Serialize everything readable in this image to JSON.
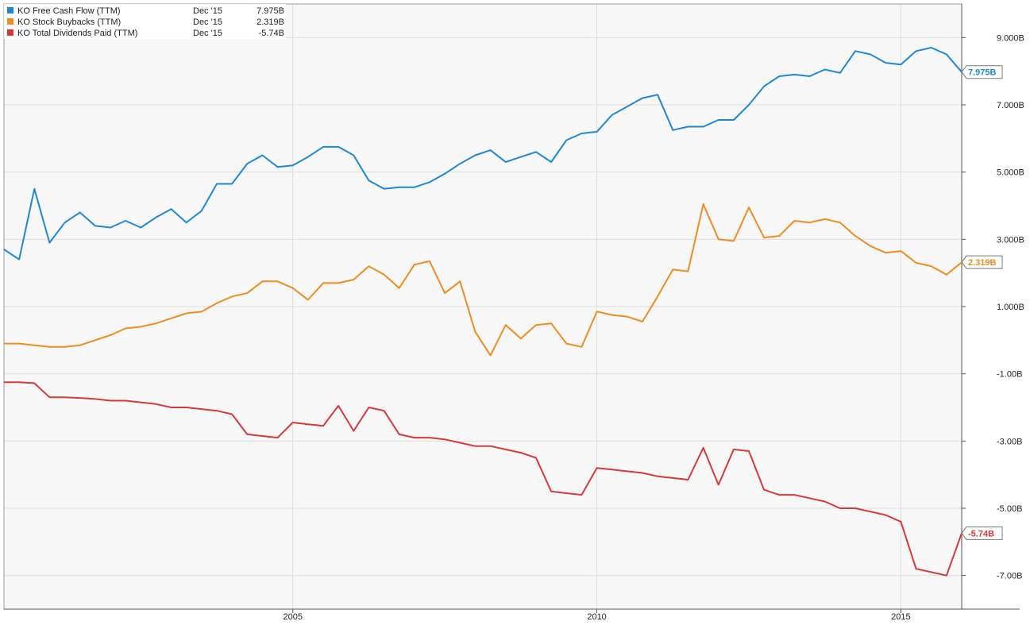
{
  "chart_data": {
    "type": "line",
    "xlim": [
      2000.25,
      2016.0
    ],
    "ylim": [
      -8.0,
      10.0
    ],
    "x_ticks": [
      {
        "value": 2005,
        "label": "2005"
      },
      {
        "value": 2010,
        "label": "2010"
      },
      {
        "value": 2015,
        "label": "2015"
      }
    ],
    "y_ticks": [
      {
        "value": 9,
        "label": "9.000B"
      },
      {
        "value": 7,
        "label": "7.000B"
      },
      {
        "value": 5,
        "label": "5.000B"
      },
      {
        "value": 3,
        "label": "3.000B"
      },
      {
        "value": 1,
        "label": "1.000B"
      },
      {
        "value": -1,
        "label": "-1.00B"
      },
      {
        "value": -3,
        "label": "-3.00B"
      },
      {
        "value": -5,
        "label": "-5.00B"
      },
      {
        "value": -7,
        "label": "-7.00B"
      }
    ],
    "grid": true,
    "legend_position": "top-left",
    "series": [
      {
        "name": "KO Free Cash Flow (TTM)",
        "color": "#1e88d6",
        "legend_date": "Dec '15",
        "legend_value": "7.975B",
        "end_label": "7.975B",
        "x": [
          2000.25,
          2000.5,
          2000.75,
          2001.0,
          2001.25,
          2001.5,
          2001.75,
          2002.0,
          2002.25,
          2002.5,
          2002.75,
          2003.0,
          2003.25,
          2003.5,
          2003.75,
          2004.0,
          2004.25,
          2004.5,
          2004.75,
          2005.0,
          2005.25,
          2005.5,
          2005.75,
          2006.0,
          2006.25,
          2006.5,
          2006.75,
          2007.0,
          2007.25,
          2007.5,
          2007.75,
          2008.0,
          2008.25,
          2008.5,
          2008.75,
          2009.0,
          2009.25,
          2009.5,
          2009.75,
          2010.0,
          2010.25,
          2010.5,
          2010.75,
          2011.0,
          2011.25,
          2011.5,
          2011.75,
          2012.0,
          2012.25,
          2012.5,
          2012.75,
          2013.0,
          2013.25,
          2013.5,
          2013.75,
          2014.0,
          2014.25,
          2014.5,
          2014.75,
          2015.0,
          2015.25,
          2015.5,
          2015.75,
          2016.0
        ],
        "values": [
          2.7,
          2.4,
          4.5,
          2.9,
          3.5,
          3.8,
          3.4,
          3.35,
          3.55,
          3.35,
          3.65,
          3.9,
          3.5,
          3.85,
          4.65,
          4.65,
          5.25,
          5.5,
          5.15,
          5.2,
          5.45,
          5.75,
          5.75,
          5.5,
          4.75,
          4.5,
          4.55,
          4.55,
          4.7,
          4.95,
          5.25,
          5.5,
          5.65,
          5.3,
          5.45,
          5.6,
          5.3,
          5.95,
          6.15,
          6.2,
          6.7,
          6.95,
          7.2,
          7.3,
          6.25,
          6.35,
          6.35,
          6.55,
          6.55,
          7.0,
          7.55,
          7.85,
          7.9,
          7.85,
          8.05,
          7.95,
          8.6,
          8.5,
          8.25,
          8.2,
          8.6,
          8.7,
          8.5,
          7.975
        ]
      },
      {
        "name": "KO Stock Buybacks (TTM)",
        "color": "#f08c1e",
        "legend_date": "Dec '15",
        "legend_value": "2.319B",
        "end_label": "2.319B",
        "x": [
          2000.25,
          2000.5,
          2000.75,
          2001.0,
          2001.25,
          2001.5,
          2001.75,
          2002.0,
          2002.25,
          2002.5,
          2002.75,
          2003.0,
          2003.25,
          2003.5,
          2003.75,
          2004.0,
          2004.25,
          2004.5,
          2004.75,
          2005.0,
          2005.25,
          2005.5,
          2005.75,
          2006.0,
          2006.25,
          2006.5,
          2006.75,
          2007.0,
          2007.25,
          2007.5,
          2007.75,
          2008.0,
          2008.25,
          2008.5,
          2008.75,
          2009.0,
          2009.25,
          2009.5,
          2009.75,
          2010.0,
          2010.25,
          2010.5,
          2010.75,
          2011.0,
          2011.25,
          2011.5,
          2011.75,
          2012.0,
          2012.25,
          2012.5,
          2012.75,
          2013.0,
          2013.25,
          2013.5,
          2013.75,
          2014.0,
          2014.25,
          2014.5,
          2014.75,
          2015.0,
          2015.25,
          2015.5,
          2015.75,
          2016.0
        ],
        "values": [
          -0.1,
          -0.1,
          -0.15,
          -0.2,
          -0.2,
          -0.15,
          0.0,
          0.15,
          0.35,
          0.4,
          0.5,
          0.65,
          0.8,
          0.85,
          1.1,
          1.3,
          1.4,
          1.75,
          1.75,
          1.55,
          1.2,
          1.7,
          1.7,
          1.8,
          2.2,
          1.95,
          1.55,
          2.25,
          2.35,
          1.4,
          1.75,
          0.25,
          -0.45,
          0.45,
          0.05,
          0.45,
          0.5,
          -0.1,
          -0.2,
          0.85,
          0.75,
          0.7,
          0.55,
          1.3,
          2.1,
          2.05,
          4.05,
          3.0,
          2.95,
          3.95,
          3.05,
          3.1,
          3.55,
          3.5,
          3.6,
          3.5,
          3.1,
          2.8,
          2.6,
          2.65,
          2.3,
          2.2,
          1.95,
          2.319
        ]
      },
      {
        "name": "KO Total Dividends Paid (TTM)",
        "color": "#d9383a",
        "legend_date": "Dec '15",
        "legend_value": "-5.74B",
        "end_label": "-5.74B",
        "x": [
          2000.25,
          2000.5,
          2000.75,
          2001.0,
          2001.25,
          2001.5,
          2001.75,
          2002.0,
          2002.25,
          2002.5,
          2002.75,
          2003.0,
          2003.25,
          2003.5,
          2003.75,
          2004.0,
          2004.25,
          2004.5,
          2004.75,
          2005.0,
          2005.25,
          2005.5,
          2005.75,
          2006.0,
          2006.25,
          2006.5,
          2006.75,
          2007.0,
          2007.25,
          2007.5,
          2007.75,
          2008.0,
          2008.25,
          2008.5,
          2008.75,
          2009.0,
          2009.25,
          2009.5,
          2009.75,
          2010.0,
          2010.25,
          2010.5,
          2010.75,
          2011.0,
          2011.25,
          2011.5,
          2011.75,
          2012.0,
          2012.25,
          2012.5,
          2012.75,
          2013.0,
          2013.25,
          2013.5,
          2013.75,
          2014.0,
          2014.25,
          2014.5,
          2014.75,
          2015.0,
          2015.25,
          2015.5,
          2015.75,
          2016.0
        ],
        "values": [
          -1.25,
          -1.25,
          -1.28,
          -1.7,
          -1.7,
          -1.72,
          -1.75,
          -1.8,
          -1.8,
          -1.85,
          -1.9,
          -2.0,
          -2.0,
          -2.05,
          -2.1,
          -2.2,
          -2.8,
          -2.85,
          -2.9,
          -2.45,
          -2.5,
          -2.55,
          -1.95,
          -2.7,
          -2.0,
          -2.1,
          -2.8,
          -2.9,
          -2.9,
          -2.95,
          -3.05,
          -3.15,
          -3.15,
          -3.25,
          -3.35,
          -3.5,
          -4.5,
          -4.55,
          -4.6,
          -3.8,
          -3.85,
          -3.9,
          -3.95,
          -4.05,
          -4.1,
          -4.15,
          -3.2,
          -4.3,
          -3.25,
          -3.3,
          -4.45,
          -4.6,
          -4.6,
          -4.7,
          -4.8,
          -5.0,
          -5.0,
          -5.1,
          -5.2,
          -5.4,
          -6.8,
          -6.9,
          -7.0,
          -5.74
        ]
      }
    ]
  }
}
